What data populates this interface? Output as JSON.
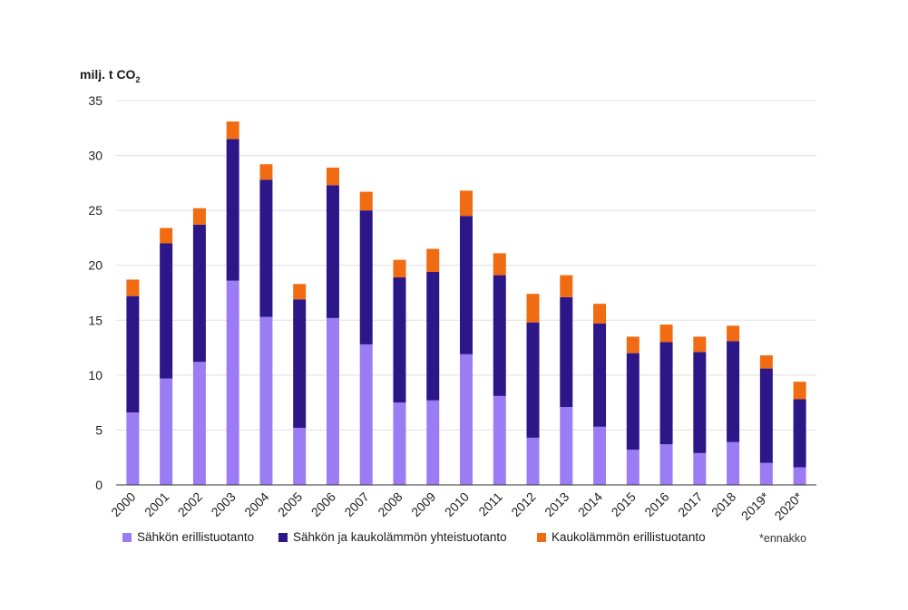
{
  "colors": {
    "erillis": "#9b7cf4",
    "yhteis": "#2d1687",
    "kauko": "#f06b12",
    "grid": "#e0e0e0",
    "axis": "#333333"
  },
  "y_title_main": "milj. t CO",
  "y_title_sub": "2",
  "note": "*ennakko",
  "chart_data": {
    "type": "bar",
    "stacked": true,
    "categories": [
      "2000",
      "2001",
      "2002",
      "2003",
      "2004",
      "2005",
      "2006",
      "2007",
      "2008",
      "2009",
      "2010",
      "2011",
      "2012",
      "2013",
      "2014",
      "2015",
      "2016",
      "2017",
      "2018",
      "2019*",
      "2020*"
    ],
    "series": [
      {
        "name": "Sähkön erillistuotanto",
        "color": "#9b7cf4",
        "values": [
          6.6,
          9.7,
          11.2,
          18.6,
          15.3,
          5.2,
          15.2,
          12.8,
          7.5,
          7.7,
          11.9,
          8.1,
          4.3,
          7.1,
          5.3,
          3.2,
          3.7,
          2.9,
          3.9,
          2.0,
          1.6
        ]
      },
      {
        "name": "Sähkön ja kaukolämmön yhteistuotanto",
        "color": "#2d1687",
        "values": [
          10.6,
          12.3,
          12.5,
          12.9,
          12.5,
          11.7,
          12.1,
          12.2,
          11.4,
          11.7,
          12.6,
          11.0,
          10.5,
          10.0,
          9.4,
          8.8,
          9.3,
          9.2,
          9.2,
          8.6,
          6.2
        ]
      },
      {
        "name": "Kaukolämmön erillistuotanto",
        "color": "#f06b12",
        "values": [
          1.5,
          1.4,
          1.5,
          1.6,
          1.4,
          1.4,
          1.6,
          1.7,
          1.6,
          2.1,
          2.3,
          2.0,
          2.6,
          2.0,
          1.8,
          1.5,
          1.6,
          1.4,
          1.4,
          1.2,
          1.6
        ]
      }
    ],
    "ylabel": "milj. t CO2",
    "ylim": [
      0,
      35
    ],
    "yticks": [
      0,
      5,
      10,
      15,
      20,
      25,
      30,
      35
    ],
    "grid": true,
    "legend_position": "bottom",
    "annotations": [
      "*ennakko"
    ]
  }
}
